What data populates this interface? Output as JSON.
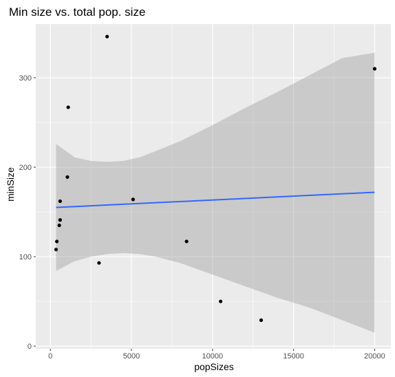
{
  "chart_data": {
    "type": "scatter",
    "title": "Min size vs. total pop. size",
    "xlabel": "popSizes",
    "ylabel": "minSize",
    "xlim": [
      -900,
      21000
    ],
    "ylim": [
      -3,
      360
    ],
    "x_ticks": [
      0,
      5000,
      10000,
      15000,
      20000
    ],
    "x_tick_labels": [
      "0",
      "5000",
      "10000",
      "15000",
      "20000"
    ],
    "y_ticks": [
      0,
      100,
      200,
      300
    ],
    "y_tick_labels": [
      "0",
      "100",
      "200",
      "300"
    ],
    "grid": true,
    "legend": "none",
    "points": [
      {
        "x": 3500,
        "y": 346
      },
      {
        "x": 20000,
        "y": 310
      },
      {
        "x": 1100,
        "y": 267
      },
      {
        "x": 1050,
        "y": 189
      },
      {
        "x": 600,
        "y": 162
      },
      {
        "x": 5100,
        "y": 164
      },
      {
        "x": 600,
        "y": 141
      },
      {
        "x": 550,
        "y": 135
      },
      {
        "x": 8400,
        "y": 117
      },
      {
        "x": 400,
        "y": 117
      },
      {
        "x": 350,
        "y": 108
      },
      {
        "x": 3000,
        "y": 93
      },
      {
        "x": 10500,
        "y": 50
      },
      {
        "x": 13000,
        "y": 29
      }
    ],
    "fit_line": {
      "method": "lm",
      "x": [
        350,
        20000
      ],
      "y": [
        155,
        172
      ],
      "color": "#3366FF"
    },
    "confidence_band": {
      "x": [
        350,
        1500,
        2500,
        3500,
        4500,
        5500,
        6500,
        8000,
        10000,
        12000,
        14000,
        16000,
        18000,
        20000
      ],
      "upper": [
        226,
        211,
        207,
        206,
        207,
        211,
        218,
        229,
        247,
        266,
        284,
        303,
        322,
        328
      ],
      "lower": [
        84,
        95,
        100,
        103,
        104,
        103,
        100,
        93,
        80,
        67,
        54,
        43,
        29,
        15
      ],
      "color": "#999999"
    },
    "colors": {
      "panel_background": "#EBEBEB",
      "grid_major": "#FFFFFF",
      "point": "#000000",
      "fit_line": "#3366FF",
      "band": "#999999"
    }
  }
}
